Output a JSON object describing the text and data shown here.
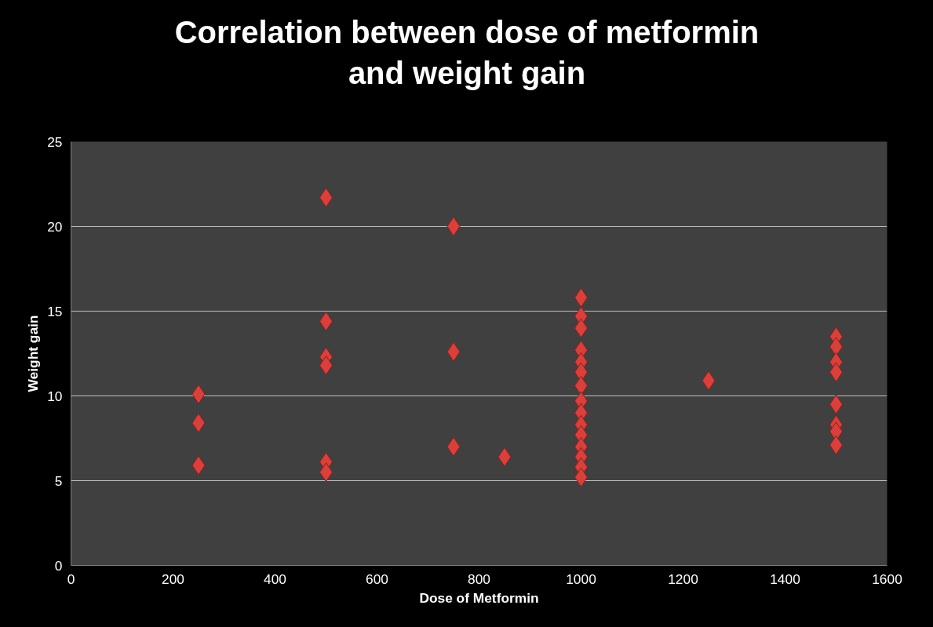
{
  "chart_data": {
    "type": "scatter",
    "title": "Correlation between dose of metformin\nand weight gain",
    "xlabel": "Dose of Metformin",
    "ylabel": "Weight gain",
    "x": [
      250,
      250,
      250,
      500,
      500,
      500,
      500,
      500,
      500,
      750,
      750,
      750,
      850,
      1000,
      1000,
      1000,
      1000,
      1000,
      1000,
      1000,
      1000,
      1000,
      1000,
      1000,
      1000,
      1000,
      1000,
      1000,
      1250,
      1500,
      1500,
      1500,
      1500,
      1500,
      1500,
      1500,
      1500
    ],
    "values": [
      10.1,
      8.4,
      5.9,
      21.7,
      14.4,
      12.3,
      11.8,
      6.1,
      5.5,
      20.0,
      12.6,
      7.0,
      6.4,
      15.8,
      14.7,
      14.0,
      12.7,
      12.0,
      11.4,
      10.6,
      9.7,
      9.0,
      8.3,
      7.7,
      7.0,
      6.4,
      5.8,
      5.2,
      10.9,
      13.5,
      12.9,
      12.0,
      11.4,
      9.5,
      8.3,
      7.9,
      7.1
    ],
    "color": "#d9403c",
    "marker": "diamond",
    "grid": "y",
    "xlim": [
      0,
      1600
    ],
    "xticks": [
      0,
      200,
      400,
      600,
      800,
      1000,
      1200,
      1400,
      1600
    ],
    "ylim": [
      0,
      25
    ],
    "yticks": [
      0,
      5,
      10,
      15,
      20,
      25
    ]
  }
}
